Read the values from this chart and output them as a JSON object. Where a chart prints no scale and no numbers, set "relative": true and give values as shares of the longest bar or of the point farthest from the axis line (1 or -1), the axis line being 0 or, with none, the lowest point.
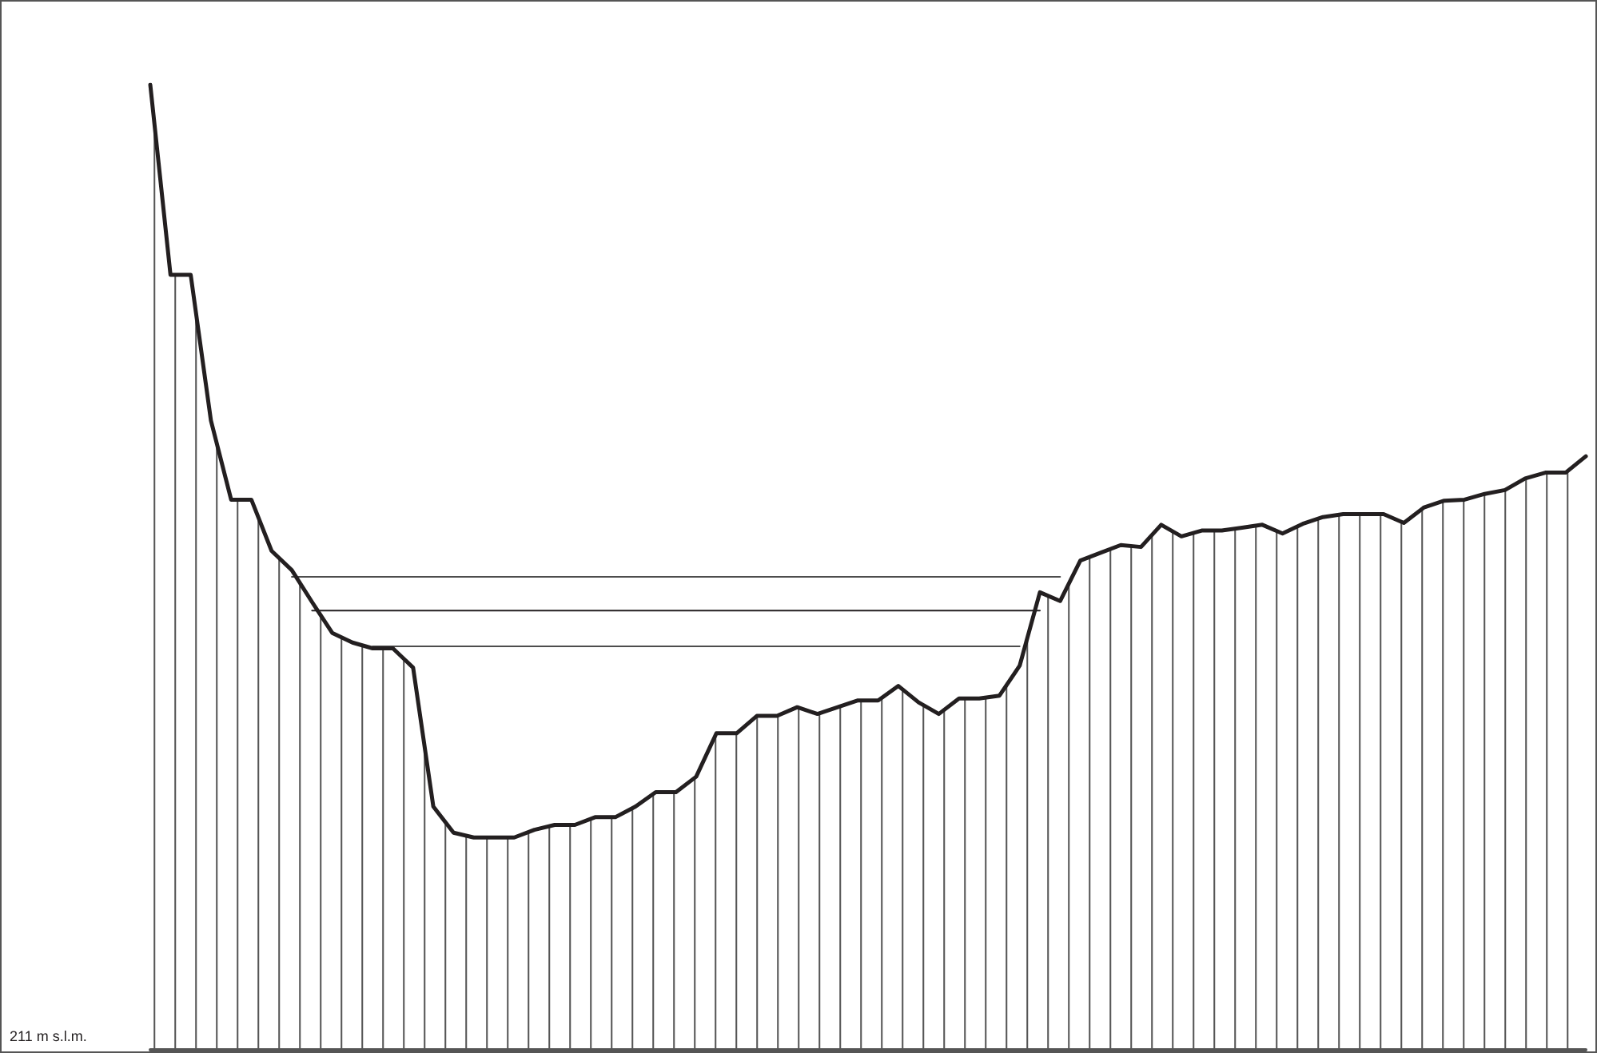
{
  "chart_data": {
    "type": "line",
    "relative": true,
    "legend": false,
    "tick_labels": false,
    "grid": false,
    "marker": "none",
    "line_style": "solid",
    "annotations": [
      "211 m s.l.m."
    ],
    "categories": [
      null,
      null,
      null,
      null,
      null,
      null,
      null,
      null,
      null,
      null,
      null,
      null,
      null,
      null,
      null,
      null,
      null,
      null,
      null,
      null,
      null,
      null,
      null,
      null,
      null,
      null,
      null,
      null,
      null,
      null,
      null,
      null,
      null,
      null,
      null,
      null,
      null,
      null,
      null,
      null,
      null,
      null,
      null,
      null,
      null,
      null,
      null,
      null,
      null,
      null,
      null,
      null,
      null,
      null,
      null,
      null,
      null,
      null,
      null,
      null,
      null,
      null,
      null,
      null,
      null,
      null,
      null,
      null,
      null,
      null,
      null,
      null
    ],
    "series": [
      {
        "type": "area",
        "color": "#231f20",
        "values": [
          1,
          0.803,
          0.803,
          0.652,
          0.57,
          0.57,
          0.517,
          0.497,
          0.464,
          0.432,
          0.422,
          0.416,
          0.416,
          0.396,
          0.252,
          0.225,
          0.22,
          0.22,
          0.22,
          0.228,
          0.233,
          0.233,
          0.241,
          0.241,
          0.252,
          0.267,
          0.267,
          0.283,
          0.328,
          0.328,
          0.346,
          0.346,
          0.355,
          0.348,
          0.355,
          0.362,
          0.362,
          0.377,
          0.36,
          0.348,
          0.364,
          0.364,
          0.367,
          0.398,
          0.474,
          0.465,
          0.507,
          0.515,
          0.523,
          0.521,
          0.544,
          0.532,
          0.538,
          0.538,
          0.541,
          0.544,
          0.535,
          0.545,
          0.552,
          0.555,
          0.555,
          0.555,
          0.546,
          0.562,
          0.569,
          0.57,
          0.576,
          0.58,
          0.592,
          0.598,
          0.598,
          0.615
        ]
      },
      {
        "color": "#4d4d4d",
        "values": [
          null,
          null,
          null,
          null,
          null,
          null,
          null,
          0.49,
          0.49,
          0.49,
          0.49,
          0.49,
          0.49,
          0.49,
          0.49,
          0.49,
          0.49,
          0.49,
          0.49,
          0.49,
          0.49,
          0.49,
          0.49,
          0.49,
          0.49,
          0.49,
          0.49,
          0.49,
          0.49,
          0.49,
          0.49,
          0.49,
          0.49,
          0.49,
          0.49,
          0.49,
          0.49,
          0.49,
          0.49,
          0.49,
          0.49,
          0.49,
          0.49,
          0.49,
          0.49,
          0.49,
          null,
          null,
          null,
          null,
          null,
          null,
          null,
          null,
          null,
          null,
          null,
          null,
          null,
          null,
          null,
          null,
          null,
          null,
          null,
          null,
          null,
          null,
          null,
          null,
          null,
          null
        ]
      },
      {
        "color": "#231f20",
        "values": [
          null,
          null,
          null,
          null,
          null,
          null,
          null,
          null,
          0.455,
          0.455,
          0.455,
          0.455,
          0.455,
          0.455,
          0.455,
          0.455,
          0.455,
          0.455,
          0.455,
          0.455,
          0.455,
          0.455,
          0.455,
          0.455,
          0.455,
          0.455,
          0.455,
          0.455,
          0.455,
          0.455,
          0.455,
          0.455,
          0.455,
          0.455,
          0.455,
          0.455,
          0.455,
          0.455,
          0.455,
          0.455,
          0.455,
          0.455,
          0.455,
          0.455,
          0.455,
          null,
          null,
          null,
          null,
          null,
          null,
          null,
          null,
          null,
          null,
          null,
          null,
          null,
          null,
          null,
          null,
          null,
          null,
          null,
          null,
          null,
          null,
          null,
          null,
          null,
          null,
          null
        ]
      },
      {
        "color": "#4d4d4d",
        "values": [
          null,
          null,
          null,
          null,
          null,
          null,
          null,
          null,
          null,
          null,
          null,
          0.418,
          0.418,
          0.418,
          0.418,
          0.418,
          0.418,
          0.418,
          0.418,
          0.418,
          0.418,
          0.418,
          0.418,
          0.418,
          0.418,
          0.418,
          0.418,
          0.418,
          0.418,
          0.418,
          0.418,
          0.418,
          0.418,
          0.418,
          0.418,
          0.418,
          0.418,
          0.418,
          0.418,
          0.418,
          0.418,
          0.418,
          0.418,
          0.418,
          null,
          null,
          null,
          null,
          null,
          null,
          null,
          null,
          null,
          null,
          null,
          null,
          null,
          null,
          null,
          null,
          null,
          null,
          null,
          null,
          null,
          null,
          null,
          null,
          null,
          null,
          null,
          null
        ]
      }
    ]
  }
}
